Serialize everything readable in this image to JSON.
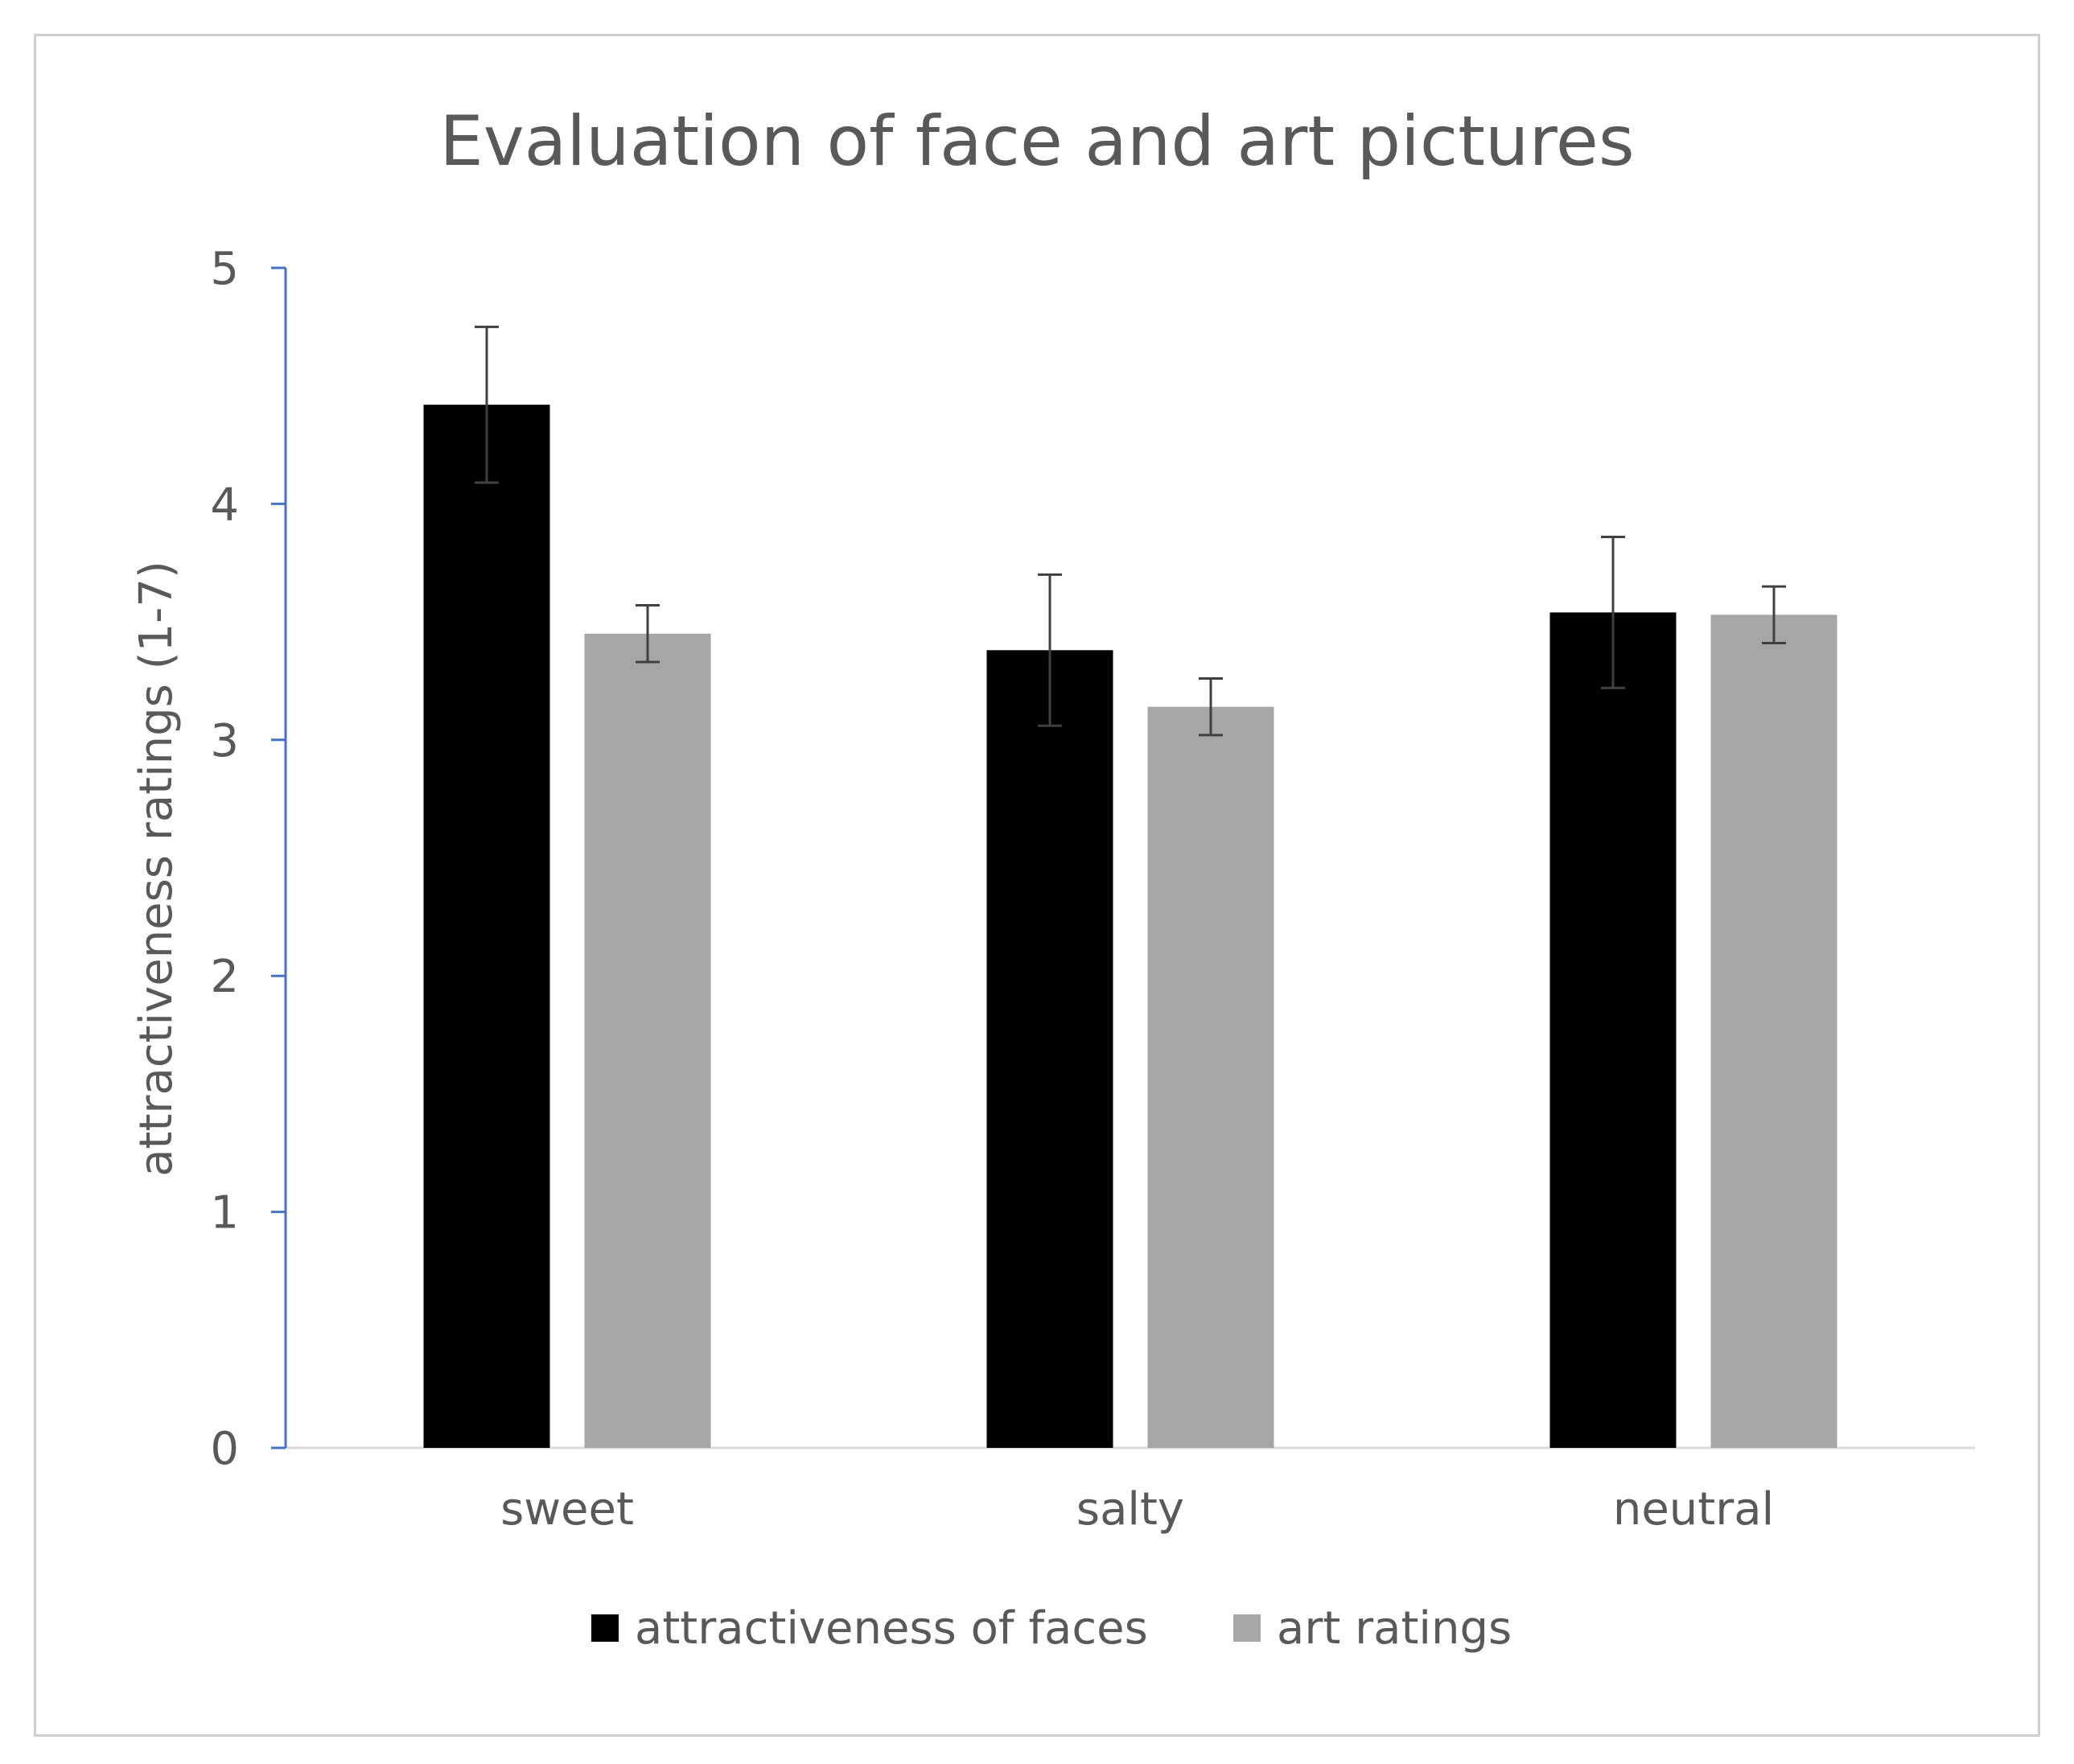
{
  "chart_data": {
    "type": "bar",
    "title": "Evaluation of face and art pictures",
    "xlabel": "",
    "ylabel": "attractiveness ratings (1-7)",
    "ylim": [
      0,
      5
    ],
    "yticks": [
      "0",
      "1",
      "2",
      "3",
      "4",
      "5"
    ],
    "categories": [
      "sweet",
      "salty",
      "neutral"
    ],
    "series": [
      {
        "name": "attractiveness of faces",
        "color": "#000000",
        "values": [
          4.42,
          3.38,
          3.54
        ],
        "error": [
          0.33,
          0.32,
          0.32
        ]
      },
      {
        "name": "art ratings",
        "color": "#a6a6a6",
        "values": [
          3.45,
          3.14,
          3.53
        ],
        "error": [
          0.12,
          0.12,
          0.12
        ]
      }
    ],
    "grid": false,
    "legend": "bottom-center",
    "colors": {
      "axis_y": "#4472c4",
      "axis_x": "#d9d9d9",
      "text": "#595959",
      "error_bar": "#404040"
    }
  }
}
